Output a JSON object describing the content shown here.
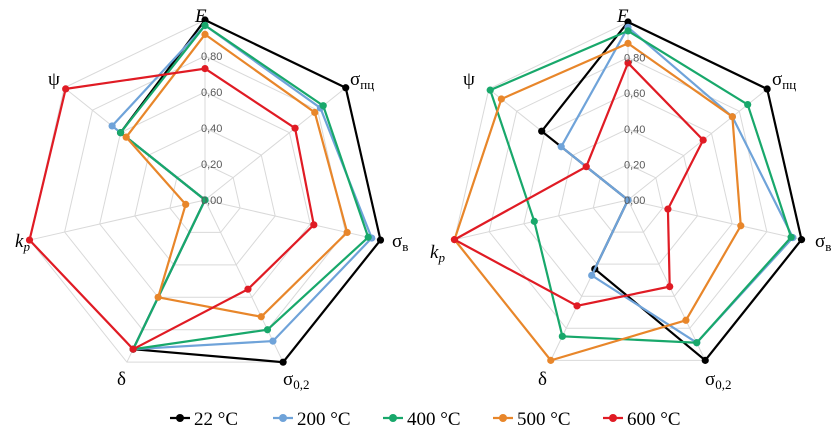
{
  "chart_data": [
    {
      "type": "radar",
      "axes": [
        {
          "label": "E",
          "sub": ""
        },
        {
          "label": "σ",
          "sub": "пц"
        },
        {
          "label": "σ",
          "sub": "в"
        },
        {
          "label": "σ",
          "sub": "0,2"
        },
        {
          "label": "δ",
          "sub": ""
        },
        {
          "label": "k",
          "sub": "p"
        },
        {
          "label": "ψ",
          "sub": ""
        }
      ],
      "range": [
        0,
        1
      ],
      "ticks": [
        "0,00",
        "0,20",
        "0,40",
        "0,60",
        "0,80"
      ],
      "tick_values": [
        0,
        0.2,
        0.4,
        0.6,
        0.8
      ],
      "series": [
        {
          "name": "22 °C",
          "color": "#000000",
          "values": [
            1.0,
            1.0,
            1.0,
            1.0,
            0.92,
            0.0,
            0.6
          ]
        },
        {
          "name": "200 °C",
          "color": "#6fa3d9",
          "values": [
            0.97,
            0.82,
            0.95,
            0.87,
            0.92,
            0.0,
            0.66
          ]
        },
        {
          "name": "400 °C",
          "color": "#18a86b",
          "values": [
            0.97,
            0.84,
            0.93,
            0.8,
            0.92,
            0.0,
            0.6
          ]
        },
        {
          "name": "500 °C",
          "color": "#e8862a",
          "values": [
            0.92,
            0.78,
            0.81,
            0.72,
            0.6,
            0.11,
            0.56
          ]
        },
        {
          "name": "600 °C",
          "color": "#e01b24",
          "values": [
            0.73,
            0.64,
            0.62,
            0.55,
            0.92,
            1.0,
            0.99
          ]
        }
      ]
    },
    {
      "type": "radar",
      "axes": [
        {
          "label": "E",
          "sub": ""
        },
        {
          "label": "σ",
          "sub": "пц"
        },
        {
          "label": "σ",
          "sub": "в"
        },
        {
          "label": "σ",
          "sub": "0,2"
        },
        {
          "label": "δ",
          "sub": ""
        },
        {
          "label": "k",
          "sub": "p"
        },
        {
          "label": "ψ",
          "sub": ""
        }
      ],
      "range": [
        0,
        1
      ],
      "ticks": [
        "0,00",
        "0,20",
        "0,40",
        "0,60",
        "0,80"
      ],
      "tick_values": [
        0,
        0.2,
        0.4,
        0.6,
        0.8
      ],
      "series": [
        {
          "name": "22 °C",
          "color": "#000000",
          "values": [
            1.0,
            1.0,
            1.0,
            1.0,
            0.43,
            0.0,
            0.62
          ]
        },
        {
          "name": "200 °C",
          "color": "#6fa3d9",
          "values": [
            0.97,
            0.75,
            0.95,
            0.89,
            0.47,
            0.0,
            0.48
          ]
        },
        {
          "name": "400 °C",
          "color": "#18a86b",
          "values": [
            0.95,
            0.86,
            0.94,
            0.89,
            0.85,
            0.54,
            0.99
          ]
        },
        {
          "name": "500 °C",
          "color": "#e8862a",
          "values": [
            0.88,
            0.75,
            0.65,
            0.75,
            1.0,
            1.0,
            0.91
          ]
        },
        {
          "name": "600 °C",
          "color": "#e01b24",
          "values": [
            0.77,
            0.54,
            0.23,
            0.54,
            0.66,
            1.0,
            0.3
          ]
        }
      ]
    }
  ],
  "legend": [
    {
      "name": "22 °C",
      "color": "#000000"
    },
    {
      "name": "200 °C",
      "color": "#6fa3d9"
    },
    {
      "name": "400 °C",
      "color": "#18a86b"
    },
    {
      "name": "500 °C",
      "color": "#e8862a"
    },
    {
      "name": "600 °C",
      "color": "#e01b24"
    }
  ]
}
